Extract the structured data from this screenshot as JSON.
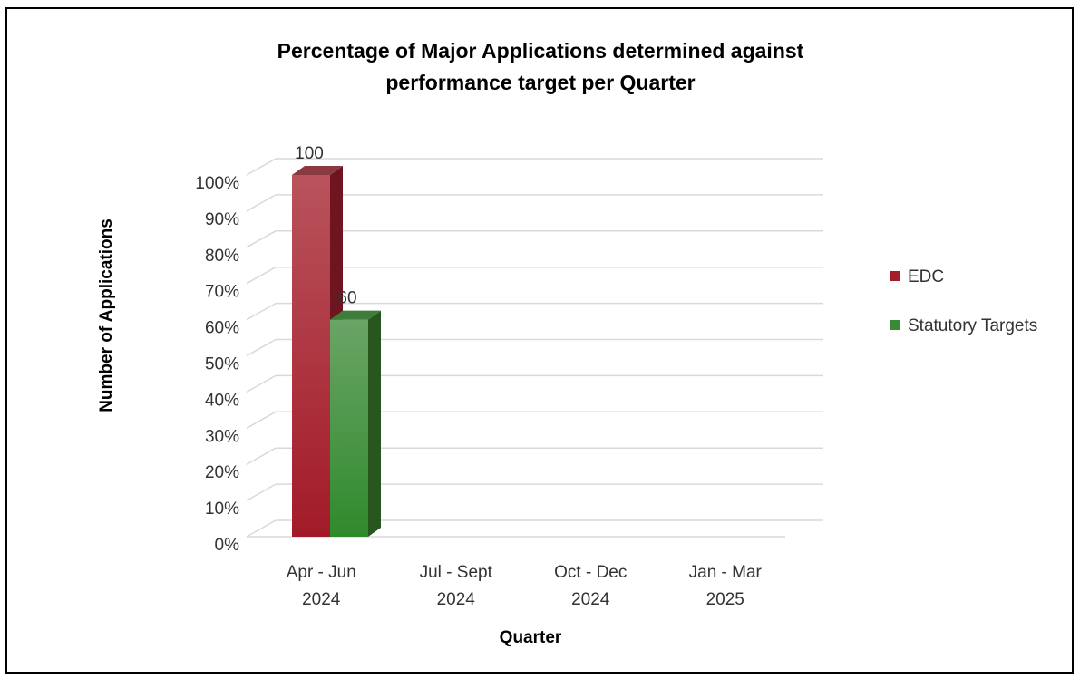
{
  "chart_data": {
    "type": "bar",
    "title_lines": [
      "Percentage of Major Applications determined against",
      "performance target per Quarter"
    ],
    "xlabel": "Quarter",
    "ylabel": "Number of Applications",
    "categories": [
      [
        "Apr - Jun",
        "2024"
      ],
      [
        "Jul - Sept",
        "2024"
      ],
      [
        "Oct - Dec",
        "2024"
      ],
      [
        "Jan - Mar",
        "2025"
      ]
    ],
    "y_ticks": [
      "0%",
      "10%",
      "20%",
      "30%",
      "40%",
      "50%",
      "60%",
      "70%",
      "80%",
      "90%",
      "100%"
    ],
    "ylim": [
      0,
      100
    ],
    "series": [
      {
        "name": "EDC",
        "color": "#a31d2b",
        "values": [
          100,
          null,
          null,
          null
        ],
        "data_labels": [
          "100",
          "",
          "",
          ""
        ]
      },
      {
        "name": "Statutory Targets",
        "color": "#3a8a35",
        "values": [
          60,
          null,
          null,
          null
        ],
        "data_labels": [
          "60",
          "",
          "",
          ""
        ]
      }
    ],
    "legend_position": "right",
    "grid": true,
    "style": "3d-column"
  }
}
